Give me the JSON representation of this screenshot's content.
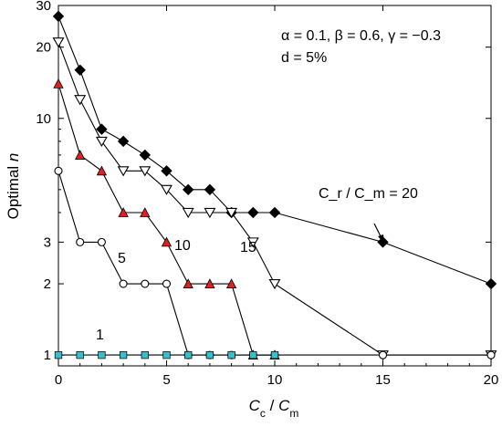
{
  "chart_data": {
    "type": "line",
    "title": "",
    "xlabel": "C_c / C_m",
    "ylabel": "Optimal n",
    "xlim": [
      0,
      20
    ],
    "ylim": [
      0.9,
      30
    ],
    "yscale": "log",
    "grid": false,
    "x_ticks": [
      0,
      5,
      10,
      15,
      20
    ],
    "y_ticks": [
      1,
      2,
      3,
      10,
      20,
      30
    ],
    "annotation_params": "α = 0.1, β = 0.6, γ = −0.3",
    "annotation_d": "d = 5%",
    "series": [
      {
        "label": "C_r / C_m = 20",
        "marker": "diamond-filled",
        "color": "#000000",
        "points": [
          [
            0,
            27
          ],
          [
            1,
            16
          ],
          [
            2,
            9
          ],
          [
            3,
            8
          ],
          [
            4,
            7
          ],
          [
            5,
            6
          ],
          [
            6,
            5
          ],
          [
            7,
            5
          ],
          [
            8,
            4
          ],
          [
            9,
            4
          ],
          [
            10,
            4
          ],
          [
            15,
            3
          ],
          [
            20,
            2
          ]
        ]
      },
      {
        "label": "15",
        "marker": "triangle-down-open",
        "color": "#000000",
        "points": [
          [
            0,
            21
          ],
          [
            1,
            12
          ],
          [
            2,
            8
          ],
          [
            3,
            6
          ],
          [
            4,
            6
          ],
          [
            5,
            5
          ],
          [
            6,
            4
          ],
          [
            7,
            4
          ],
          [
            8,
            4
          ],
          [
            9,
            3
          ],
          [
            10,
            2
          ],
          [
            15,
            1
          ],
          [
            20,
            1
          ]
        ]
      },
      {
        "label": "10",
        "marker": "triangle-up-red",
        "color": "#e02020",
        "points": [
          [
            0,
            14
          ],
          [
            1,
            7
          ],
          [
            2,
            6
          ],
          [
            3,
            4
          ],
          [
            4,
            4
          ],
          [
            5,
            3
          ],
          [
            6,
            2
          ],
          [
            7,
            2
          ],
          [
            8,
            2
          ],
          [
            9,
            1
          ],
          [
            10,
            1
          ]
        ]
      },
      {
        "label": "5",
        "marker": "circle-open",
        "color": "#000000",
        "points": [
          [
            0,
            6
          ],
          [
            1,
            3
          ],
          [
            2,
            3
          ],
          [
            3,
            2
          ],
          [
            4,
            2
          ],
          [
            5,
            2
          ],
          [
            6,
            1
          ],
          [
            7,
            1
          ],
          [
            8,
            1
          ],
          [
            9,
            1
          ],
          [
            10,
            1
          ],
          [
            15,
            1
          ],
          [
            20,
            1
          ]
        ]
      },
      {
        "label": "1",
        "marker": "square-cyan",
        "color": "#35c0cc",
        "points": [
          [
            0,
            1
          ],
          [
            1,
            1
          ],
          [
            2,
            1
          ],
          [
            3,
            1
          ],
          [
            4,
            1
          ],
          [
            5,
            1
          ],
          [
            6,
            1
          ],
          [
            7,
            1
          ],
          [
            8,
            1
          ],
          [
            9,
            1
          ],
          [
            10,
            1
          ]
        ]
      }
    ]
  }
}
